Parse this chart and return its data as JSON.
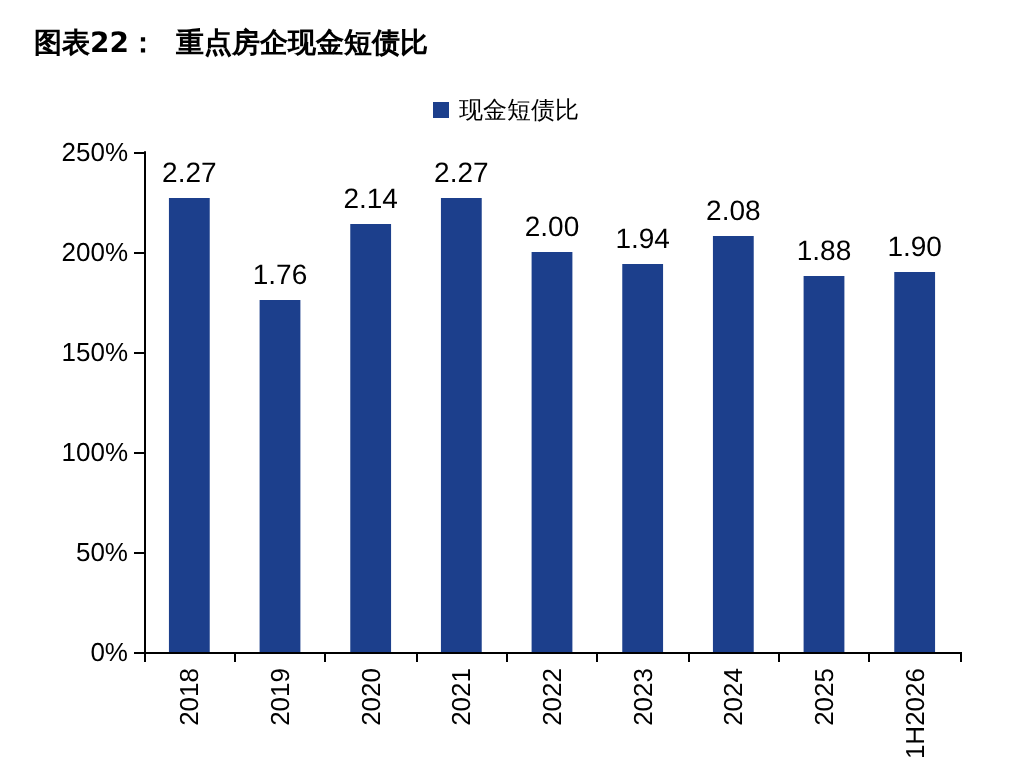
{
  "chart_data": {
    "type": "bar",
    "title": "图表22：  重点房企现金短债比",
    "categories": [
      "2018",
      "2019",
      "2020",
      "2021",
      "2022",
      "2023",
      "2024",
      "2025",
      "1H2026"
    ],
    "series": [
      {
        "name": "现金短债比",
        "color": "#1c3f8c",
        "values": [
          2.27,
          1.76,
          2.14,
          2.27,
          2.0,
          1.94,
          2.08,
          1.88,
          1.9
        ],
        "value_labels": [
          "2.27",
          "1.76",
          "2.14",
          "2.27",
          "2.00",
          "1.94",
          "2.08",
          "1.88",
          "1.90"
        ]
      }
    ],
    "ylim": [
      0,
      2.5
    ],
    "yticks": [
      {
        "value": 0,
        "label": "0%"
      },
      {
        "value": 0.5,
        "label": "50%"
      },
      {
        "value": 1,
        "label": "100%"
      },
      {
        "value": 1.5,
        "label": "150%"
      },
      {
        "value": 2,
        "label": "200%"
      },
      {
        "value": 2.5,
        "label": "250%"
      }
    ],
    "grid": false,
    "legend": "top"
  }
}
